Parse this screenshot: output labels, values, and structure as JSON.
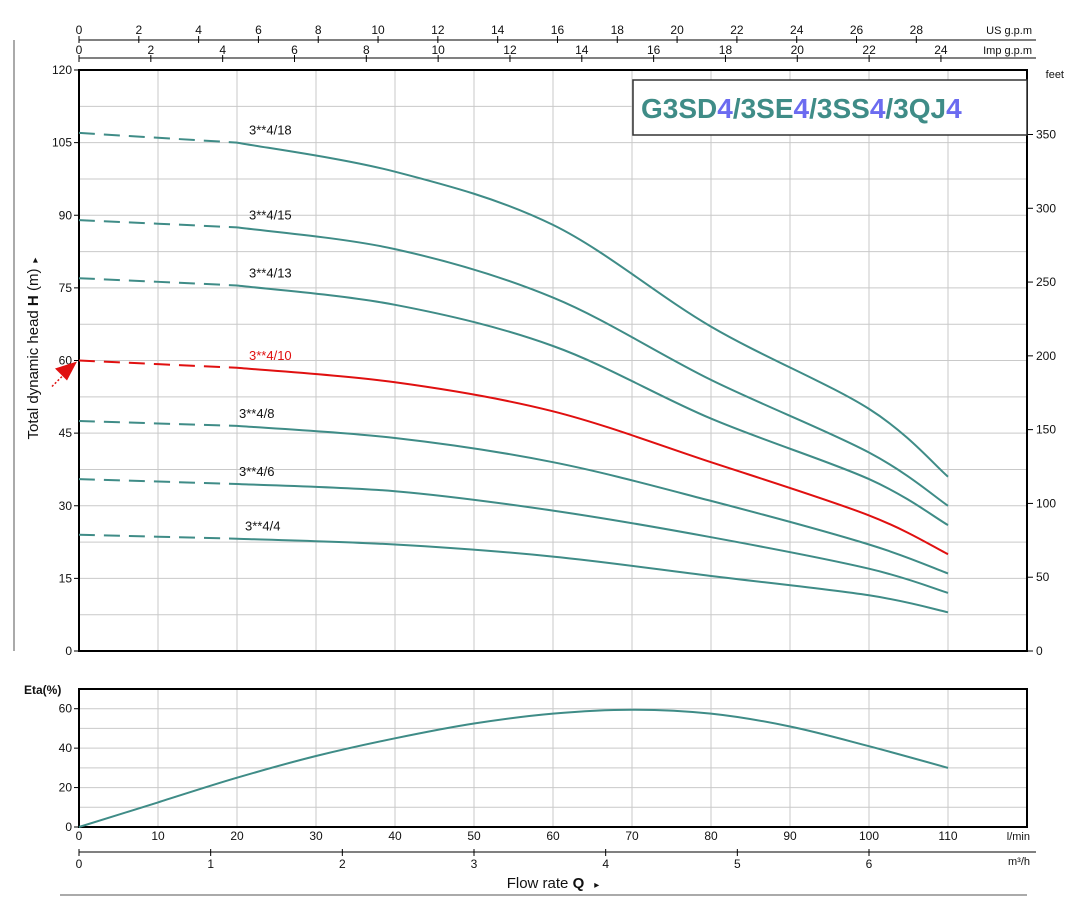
{
  "chart_data": [
    {
      "type": "line",
      "title": "G3SD4/3SE4/3SS4/3QJ4",
      "title_parts": [
        {
          "text": "G3SD",
          "color": "#3f8c87"
        },
        {
          "text": "4",
          "color": "#6b6bf0"
        },
        {
          "text": "/3SE",
          "color": "#3f8c87"
        },
        {
          "text": "4",
          "color": "#6b6bf0"
        },
        {
          "text": "/3SS",
          "color": "#3f8c87"
        },
        {
          "text": "4",
          "color": "#6b6bf0"
        },
        {
          "text": "/3QJ",
          "color": "#3f8c87"
        },
        {
          "text": "4",
          "color": "#6b6bf0"
        }
      ],
      "ylabel_prefix": "Total dynamic head ",
      "ylabel_bold": "H",
      "ylabel_suffix": " (m)",
      "ylabel_arrow": "▸",
      "ylim": [
        0,
        120
      ],
      "yticks": [
        0,
        15,
        30,
        45,
        60,
        75,
        90,
        105,
        120
      ],
      "xlim": [
        0,
        120
      ],
      "grid": true,
      "right_axis": {
        "label": "feet",
        "ticks": [
          0,
          50,
          100,
          150,
          200,
          250,
          300,
          350
        ]
      },
      "top_axis_us": {
        "label": "US g.p.m",
        "ticks": [
          0,
          2,
          4,
          6,
          8,
          10,
          12,
          14,
          16,
          18,
          20,
          22,
          24,
          26,
          28
        ]
      },
      "top_axis_imp": {
        "label": "Imp g.p.m",
        "ticks": [
          0,
          2,
          4,
          6,
          8,
          10,
          12,
          14,
          16,
          18,
          20,
          22,
          24
        ]
      },
      "dash_until_x": 20,
      "highlight_color": "#e01010",
      "series_color": "#3f8c87",
      "arrow_target_y": 60,
      "series": [
        {
          "name": "3**4/18",
          "highlight": false,
          "x": [
            0,
            20,
            40,
            60,
            80,
            100,
            110
          ],
          "values": [
            107,
            105,
            99,
            88,
            67,
            50,
            36
          ]
        },
        {
          "name": "3**4/15",
          "highlight": false,
          "x": [
            0,
            20,
            40,
            60,
            80,
            100,
            110
          ],
          "values": [
            89,
            87.5,
            83,
            73,
            56,
            41,
            30
          ]
        },
        {
          "name": "3**4/13",
          "highlight": false,
          "x": [
            0,
            20,
            40,
            60,
            80,
            100,
            110
          ],
          "values": [
            77,
            75.5,
            71.5,
            63,
            48,
            35.5,
            26
          ]
        },
        {
          "name": "3**4/10",
          "highlight": true,
          "x": [
            0,
            20,
            40,
            60,
            80,
            100,
            110
          ],
          "values": [
            60,
            58.5,
            55.5,
            49.5,
            39,
            28,
            20
          ]
        },
        {
          "name": "3**4/8",
          "highlight": false,
          "x": [
            0,
            20,
            40,
            60,
            80,
            100,
            110
          ],
          "values": [
            47.5,
            46.5,
            44,
            39,
            31,
            22,
            16
          ]
        },
        {
          "name": "3**4/6",
          "highlight": false,
          "x": [
            0,
            20,
            40,
            60,
            80,
            100,
            110
          ],
          "values": [
            35.5,
            34.5,
            33,
            29,
            23.5,
            17,
            12
          ]
        },
        {
          "name": "3**4/4",
          "highlight": false,
          "x": [
            0,
            20,
            40,
            60,
            80,
            100,
            110
          ],
          "values": [
            24,
            23.2,
            22,
            19.5,
            15.5,
            11.5,
            8
          ]
        }
      ]
    },
    {
      "type": "line",
      "ylabel": "Eta(%)",
      "ylim": [
        0,
        70
      ],
      "yticks": [
        0,
        20,
        40,
        60
      ],
      "xlim": [
        0,
        120
      ],
      "grid": true,
      "x_axis": {
        "label": "l/min",
        "ticks": [
          0,
          10,
          20,
          30,
          40,
          50,
          60,
          70,
          80,
          90,
          100,
          110
        ]
      },
      "x_axis_m3h": {
        "label": "m³/h",
        "ticks": [
          0,
          1,
          2,
          3,
          4,
          5,
          6
        ]
      },
      "xlabel_prefix": "Flow rate  ",
      "xlabel_bold": "Q",
      "xlabel_arrow": "▸",
      "series": [
        {
          "x": [
            0,
            10,
            20,
            30,
            40,
            50,
            60,
            70,
            80,
            90,
            100,
            110
          ],
          "values": [
            0,
            12.5,
            25,
            36,
            45,
            52.5,
            57.5,
            59.5,
            57.5,
            51,
            41,
            30
          ]
        }
      ]
    }
  ]
}
